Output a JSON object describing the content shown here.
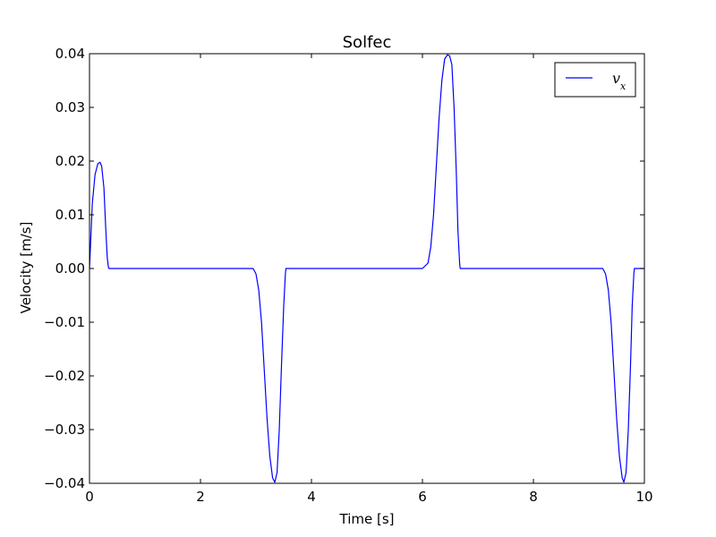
{
  "chart_data": {
    "type": "line",
    "title": "Solfec",
    "xlabel": "Time [s]",
    "ylabel": "Velocity [m/s]",
    "xlim": [
      0,
      10
    ],
    "ylim": [
      -0.04,
      0.04
    ],
    "xticks": [
      0,
      2,
      4,
      6,
      8,
      10
    ],
    "xtick_labels": [
      "0",
      "2",
      "4",
      "6",
      "8",
      "10"
    ],
    "yticks": [
      0.04,
      0.03,
      0.02,
      0.01,
      0.0,
      -0.01,
      -0.02,
      -0.03,
      -0.04
    ],
    "ytick_labels": [
      "0.04",
      "0.03",
      "0.02",
      "0.01",
      "0.00",
      "−0.01",
      "−0.02",
      "−0.03",
      "−0.04"
    ],
    "grid": false,
    "legend_position": "top-right",
    "series": [
      {
        "name": "v_x",
        "color": "#0000ff",
        "x": [
          0,
          0.05,
          0.1,
          0.15,
          0.19,
          0.22,
          0.26,
          0.29,
          0.32,
          0.34,
          0.35,
          1.0,
          2.0,
          2.95,
          3.0,
          3.05,
          3.1,
          3.15,
          3.2,
          3.25,
          3.3,
          3.34,
          3.38,
          3.42,
          3.46,
          3.5,
          3.52,
          3.53,
          3.54,
          3.55,
          4.0,
          5.0,
          6.0,
          6.1,
          6.15,
          6.2,
          6.25,
          6.3,
          6.35,
          6.4,
          6.45,
          6.49,
          6.53,
          6.57,
          6.61,
          6.64,
          6.66,
          6.67,
          6.68,
          6.7,
          7.0,
          8.0,
          9.0,
          9.25,
          9.3,
          9.35,
          9.4,
          9.45,
          9.5,
          9.55,
          9.6,
          9.63,
          9.67,
          9.71,
          9.75,
          9.78,
          9.8,
          9.81,
          9.82,
          9.85,
          10.0
        ],
        "y": [
          0.0,
          0.012,
          0.0175,
          0.0195,
          0.0198,
          0.019,
          0.015,
          0.008,
          0.002,
          0.0003,
          0.0,
          0.0,
          0.0,
          0.0,
          -0.001,
          -0.004,
          -0.01,
          -0.019,
          -0.028,
          -0.035,
          -0.039,
          -0.0398,
          -0.038,
          -0.03,
          -0.018,
          -0.007,
          -0.003,
          -0.001,
          0.0,
          0.0,
          0.0,
          0.0,
          0.0,
          0.001,
          0.004,
          0.01,
          0.019,
          0.028,
          0.035,
          0.039,
          0.0398,
          0.0396,
          0.038,
          0.03,
          0.018,
          0.007,
          0.003,
          0.001,
          0.0,
          0.0,
          0.0,
          0.0,
          0.0,
          0.0,
          -0.001,
          -0.004,
          -0.01,
          -0.019,
          -0.028,
          -0.035,
          -0.039,
          -0.0398,
          -0.038,
          -0.03,
          -0.018,
          -0.007,
          -0.003,
          -0.001,
          0.0,
          0.0,
          0.0
        ]
      }
    ]
  }
}
